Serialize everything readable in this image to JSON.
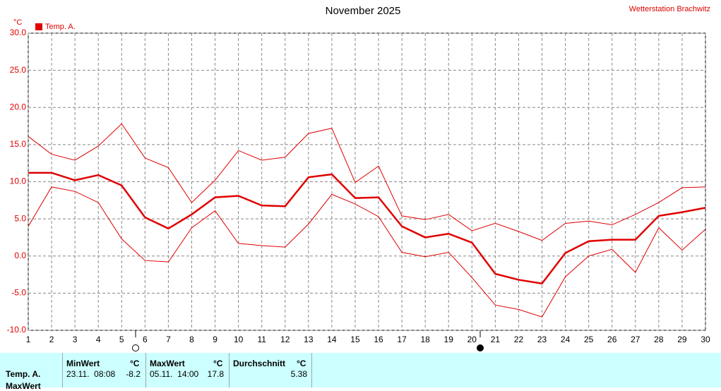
{
  "chart_data": {
    "type": "line",
    "title": "November 2025",
    "subtitle": "Wetterstation Brachwitz",
    "y_label": "°C",
    "x": [
      1,
      2,
      3,
      4,
      5,
      6,
      7,
      8,
      9,
      10,
      11,
      12,
      13,
      14,
      15,
      16,
      17,
      18,
      19,
      20,
      21,
      22,
      23,
      24,
      25,
      26,
      27,
      28,
      29,
      30
    ],
    "xlim": [
      1,
      30
    ],
    "xticks": [
      1,
      2,
      3,
      4,
      5,
      6,
      7,
      8,
      9,
      10,
      11,
      12,
      13,
      14,
      15,
      16,
      17,
      18,
      19,
      20,
      21,
      22,
      23,
      24,
      25,
      26,
      27,
      28,
      29,
      30
    ],
    "ylim": [
      -10,
      30
    ],
    "yticks": [
      {
        "value": -10,
        "label": "-10.0"
      },
      {
        "value": -5,
        "label": "-5.0"
      },
      {
        "value": 0,
        "label": "0.0"
      },
      {
        "value": 5,
        "label": "5.0"
      },
      {
        "value": 10,
        "label": "10.0"
      },
      {
        "value": 15,
        "label": "15.0"
      },
      {
        "value": 20,
        "label": "20.0"
      },
      {
        "value": 25,
        "label": "25.0"
      },
      {
        "value": 30,
        "label": "30.0"
      }
    ],
    "grid": true,
    "legend": "top-left",
    "series": [
      {
        "name": "Temp. A.",
        "color": "#e00000",
        "values": [
          11.2,
          11.2,
          10.2,
          10.9,
          9.5,
          5.2,
          3.7,
          5.6,
          7.9,
          8.1,
          6.8,
          6.7,
          10.6,
          11.0,
          7.8,
          7.9,
          4.0,
          2.5,
          3.0,
          1.8,
          -2.4,
          -3.2,
          -3.7,
          0.4,
          2.0,
          2.2,
          2.2,
          5.4,
          5.9,
          6.5
        ]
      },
      {
        "color": "#e00000",
        "values": [
          16.1,
          13.7,
          12.9,
          14.8,
          17.8,
          13.2,
          11.9,
          7.2,
          10.2,
          14.2,
          12.9,
          13.3,
          16.5,
          17.2,
          9.9,
          12.1,
          5.4,
          4.9,
          5.6,
          3.4,
          4.4,
          3.3,
          2.1,
          4.4,
          4.7,
          4.2,
          5.6,
          7.2,
          9.2,
          9.3
        ]
      },
      {
        "color": "#e00000",
        "values": [
          4.0,
          9.3,
          8.7,
          7.2,
          2.3,
          -0.6,
          -0.8,
          3.8,
          6.1,
          1.7,
          1.4,
          1.2,
          4.3,
          8.3,
          7.0,
          5.3,
          0.5,
          -0.1,
          0.5,
          -2.9,
          -6.6,
          -7.2,
          -8.2,
          -2.8,
          0.0,
          0.9,
          -2.2,
          3.8,
          0.8,
          3.6
        ]
      }
    ]
  },
  "table": {
    "row_labels": [
      "Temp. A.",
      "MaxWert"
    ],
    "headers": [
      "MinWert",
      "°C",
      "MaxWert",
      "°C",
      "Durchschnitt",
      "°C"
    ],
    "row": [
      "23.11.  08:08",
      "-8.2",
      "05.11.  14:00",
      "17.8",
      "5.38"
    ]
  }
}
